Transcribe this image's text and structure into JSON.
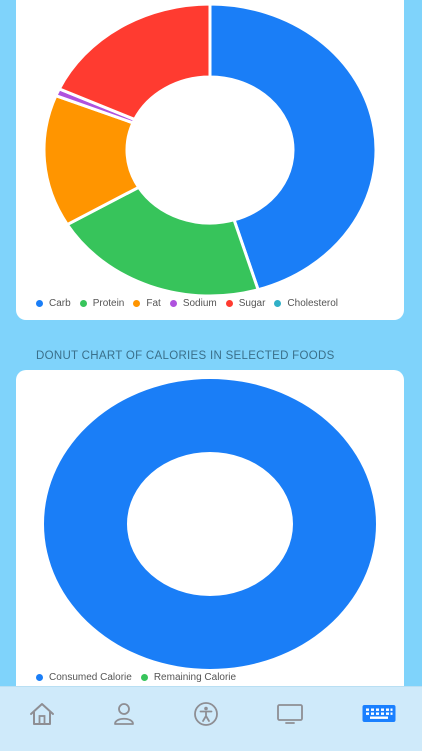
{
  "colors": {
    "background": "#7fd3fb",
    "card": "#ffffff",
    "tab_active": "#1a80ff",
    "tab_inactive": "#8e8e93"
  },
  "section": {
    "title": "DONUT CHART OF CALORIES IN SELECTED FOODS"
  },
  "chart_data": [
    {
      "type": "pie",
      "style": "donut",
      "legend_position": "bottom-left",
      "series": [
        {
          "name": "Carb",
          "value": 45.0,
          "color": "#1a7ef7"
        },
        {
          "name": "Protein",
          "value": 21.0,
          "color": "#37c45b"
        },
        {
          "name": "Fat",
          "value": 14.5,
          "color": "#ff9500"
        },
        {
          "name": "Sodium",
          "value": 0.8,
          "color": "#af52de"
        },
        {
          "name": "Sugar",
          "value": 18.0,
          "color": "#ff3b30"
        },
        {
          "name": "Cholesterol",
          "value": 0.0,
          "color": "#30b0c7"
        }
      ]
    },
    {
      "type": "pie",
      "style": "donut",
      "legend_position": "bottom-left",
      "series": [
        {
          "name": "Consumed Calorie",
          "value": 100,
          "color": "#1a7ef7"
        },
        {
          "name": "Remaining Calorie",
          "value": 0,
          "color": "#37c45b"
        }
      ]
    }
  ],
  "tabbar": {
    "items": [
      {
        "icon": "home-icon",
        "active": false
      },
      {
        "icon": "person-icon",
        "active": false
      },
      {
        "icon": "accessibility-icon",
        "active": false
      },
      {
        "icon": "monitor-icon",
        "active": false
      },
      {
        "icon": "keyboard-icon",
        "active": true
      }
    ]
  }
}
